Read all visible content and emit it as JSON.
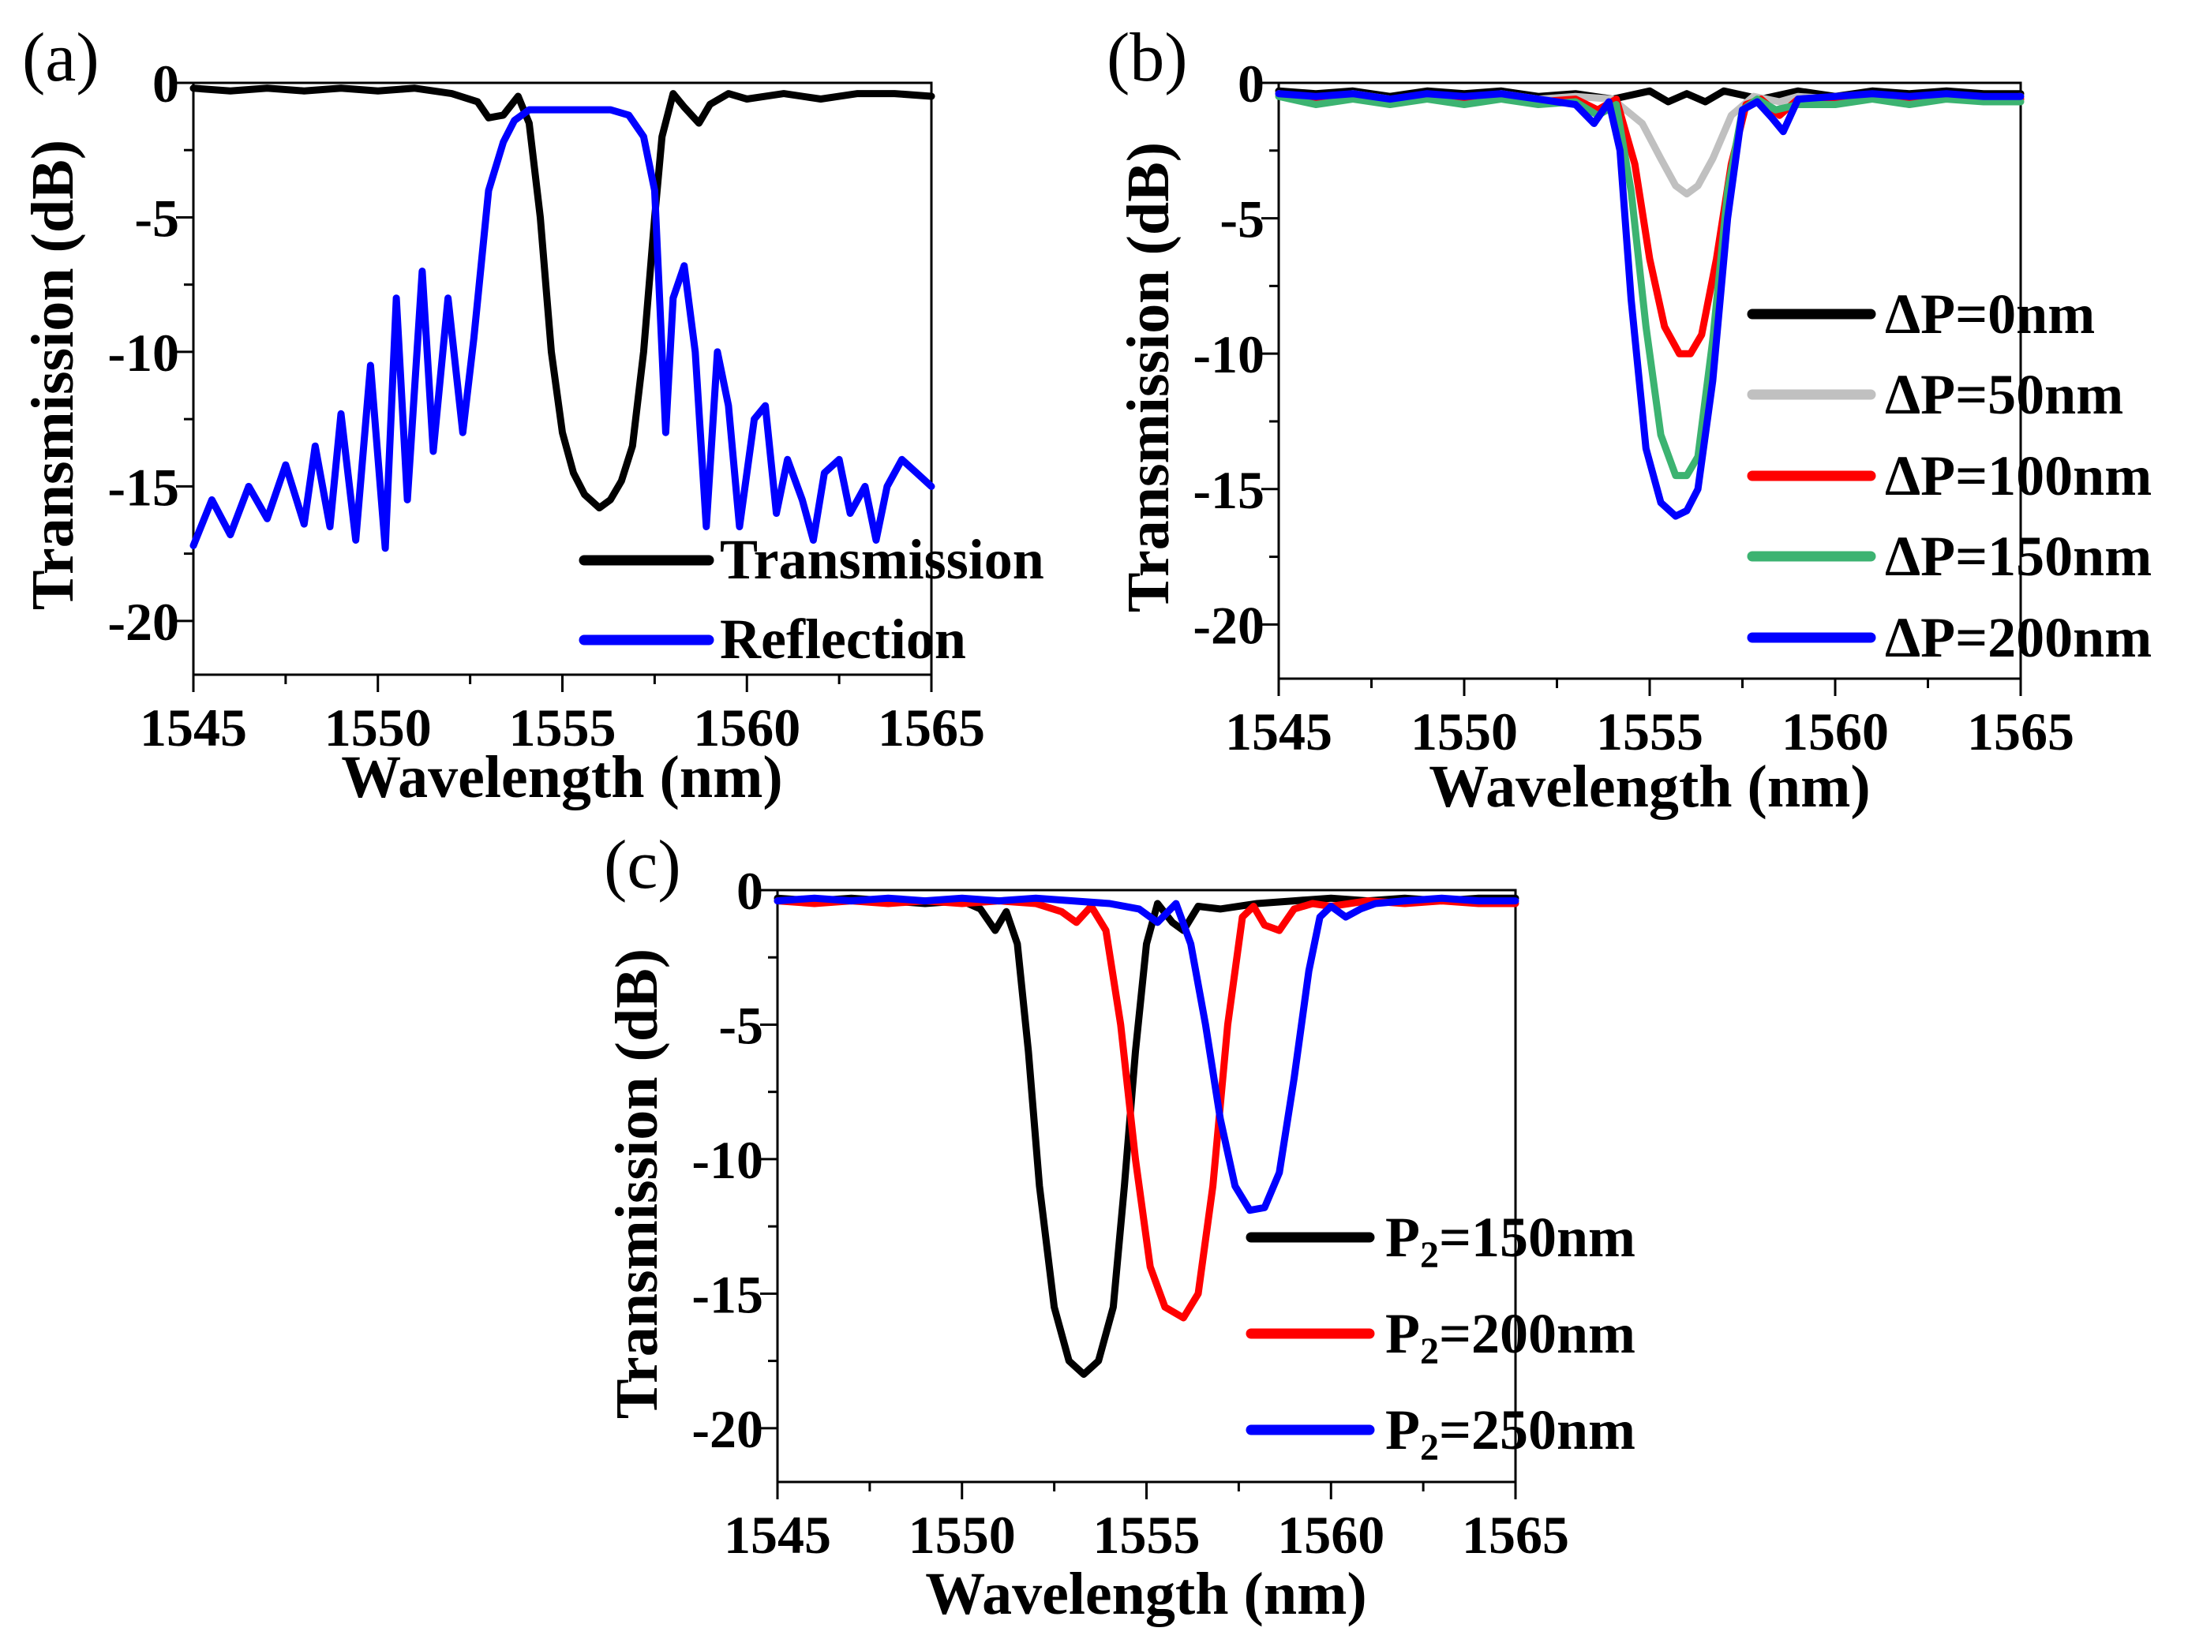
{
  "chart_data": [
    {
      "panel": "(a)",
      "type": "line",
      "xlabel": "Wavelength (nm)",
      "ylabel": "Transmission (dB)",
      "xlim": [
        1545,
        1565
      ],
      "ylim": [
        -22,
        0
      ],
      "xticks": [
        1545,
        1550,
        1555,
        1560,
        1565
      ],
      "xtick_labels": [
        "1545",
        "1550",
        "1555",
        "1560",
        "1565"
      ],
      "yticks": [
        0,
        -5,
        -10,
        -15,
        -20
      ],
      "ytick_labels": [
        "0",
        "-5",
        "-10",
        "-15",
        "-20"
      ],
      "legend_position": "bottom-right",
      "series": [
        {
          "name": "Transmission",
          "color": "#000000",
          "x": [
            1545,
            1546,
            1547,
            1548,
            1549,
            1550,
            1551,
            1552,
            1552.7,
            1553,
            1553.4,
            1553.8,
            1554.1,
            1554.4,
            1554.7,
            1555,
            1555.3,
            1555.6,
            1556,
            1556.3,
            1556.6,
            1556.9,
            1557.2,
            1557.5,
            1557.7,
            1558,
            1558.3,
            1558.7,
            1559,
            1559.5,
            1560,
            1561,
            1562,
            1563,
            1564,
            1565
          ],
          "y": [
            -0.2,
            -0.3,
            -0.2,
            -0.3,
            -0.2,
            -0.3,
            -0.2,
            -0.4,
            -0.7,
            -1.3,
            -1.2,
            -0.5,
            -1.5,
            -5,
            -10,
            -13,
            -14.5,
            -15.3,
            -15.8,
            -15.5,
            -14.8,
            -13.5,
            -10,
            -5,
            -2,
            -0.4,
            -0.9,
            -1.5,
            -0.8,
            -0.4,
            -0.6,
            -0.4,
            -0.6,
            -0.4,
            -0.4,
            -0.5
          ]
        },
        {
          "name": "Reflection",
          "color": "#0000ff",
          "x": [
            1545,
            1545.5,
            1546,
            1546.5,
            1547,
            1547.5,
            1548,
            1548.3,
            1548.7,
            1549,
            1549.4,
            1549.8,
            1550.2,
            1550.5,
            1550.8,
            1551.2,
            1551.5,
            1551.9,
            1552.3,
            1552.6,
            1553,
            1553.4,
            1553.7,
            1553.9,
            1554.1,
            1554.4,
            1554.8,
            1555.3,
            1555.8,
            1556.3,
            1556.8,
            1557.2,
            1557.5,
            1557.8,
            1558,
            1558.3,
            1558.6,
            1558.9,
            1559.2,
            1559.5,
            1559.8,
            1560.2,
            1560.5,
            1560.8,
            1561.1,
            1561.5,
            1561.8,
            1562.1,
            1562.5,
            1562.8,
            1563.2,
            1563.5,
            1563.8,
            1564.2,
            1564.6,
            1565
          ],
          "y": [
            -17.2,
            -15.5,
            -16.8,
            -15.0,
            -16.2,
            -14.2,
            -16.4,
            -13.5,
            -16.5,
            -12.3,
            -17.0,
            -10.5,
            -17.3,
            -8.0,
            -15.5,
            -7.0,
            -13.7,
            -8.0,
            -13.0,
            -9.5,
            -4.0,
            -2.2,
            -1.4,
            -1.2,
            -1.0,
            -1.0,
            -1.0,
            -1.0,
            -1.0,
            -1.0,
            -1.2,
            -2.0,
            -4.0,
            -13.0,
            -8.0,
            -6.8,
            -10.0,
            -16.5,
            -10.0,
            -12.0,
            -16.5,
            -12.5,
            -12.0,
            -16.0,
            -14.0,
            -15.5,
            -17.0,
            -14.5,
            -14.0,
            -16.0,
            -15.0,
            -17.0,
            -15.0,
            -14.0,
            -14.5,
            -15.0
          ]
        }
      ]
    },
    {
      "panel": "(b)",
      "type": "line",
      "xlabel": "Wavelength (nm)",
      "ylabel": "Transmission (dB)",
      "xlim": [
        1545,
        1565
      ],
      "ylim": [
        -22,
        0
      ],
      "xticks": [
        1545,
        1550,
        1555,
        1560,
        1565
      ],
      "xtick_labels": [
        "1545",
        "1550",
        "1555",
        "1560",
        "1565"
      ],
      "yticks": [
        0,
        -5,
        -10,
        -15,
        -20
      ],
      "ytick_labels": [
        "0",
        "-5",
        "-10",
        "-15",
        "-20"
      ],
      "legend_position": "right",
      "series": [
        {
          "name": "ΔP=0nm",
          "color": "#000000",
          "x": [
            1545,
            1546,
            1547,
            1548,
            1549,
            1550,
            1551,
            1552,
            1553,
            1554,
            1555,
            1555.5,
            1556,
            1556.5,
            1557,
            1558,
            1559,
            1560,
            1561,
            1562,
            1563,
            1564,
            1565
          ],
          "y": [
            -0.3,
            -0.4,
            -0.3,
            -0.5,
            -0.3,
            -0.4,
            -0.3,
            -0.5,
            -0.4,
            -0.6,
            -0.3,
            -0.7,
            -0.4,
            -0.7,
            -0.3,
            -0.6,
            -0.3,
            -0.5,
            -0.3,
            -0.4,
            -0.3,
            -0.4,
            -0.4
          ]
        },
        {
          "name": "ΔP=50nm",
          "color": "#c0c0c0",
          "x": [
            1545,
            1546,
            1547,
            1548,
            1549,
            1550,
            1551,
            1552,
            1553,
            1554,
            1554.8,
            1555.3,
            1555.7,
            1556,
            1556.3,
            1556.7,
            1557.2,
            1557.8,
            1558.5,
            1559,
            1560,
            1561,
            1562,
            1563,
            1564,
            1565
          ],
          "y": [
            -0.4,
            -0.6,
            -0.4,
            -0.6,
            -0.5,
            -0.6,
            -0.4,
            -0.6,
            -0.5,
            -0.6,
            -1.5,
            -2.8,
            -3.8,
            -4.1,
            -3.8,
            -2.8,
            -1.2,
            -0.5,
            -0.7,
            -0.5,
            -0.6,
            -0.5,
            -0.6,
            -0.5,
            -0.6,
            -0.5
          ]
        },
        {
          "name": "ΔP=100nm",
          "color": "#ff0000",
          "x": [
            1545,
            1546,
            1547,
            1548,
            1549,
            1550,
            1551,
            1552,
            1553,
            1553.6,
            1554.1,
            1554.6,
            1555,
            1555.4,
            1555.8,
            1556.1,
            1556.4,
            1556.8,
            1557.2,
            1557.6,
            1558,
            1558.5,
            1559,
            1560,
            1561,
            1562,
            1563,
            1564,
            1565
          ],
          "y": [
            -0.4,
            -0.6,
            -0.5,
            -0.7,
            -0.5,
            -0.7,
            -0.5,
            -0.7,
            -0.6,
            -1.0,
            -0.6,
            -3.0,
            -6.5,
            -9.0,
            -10.0,
            -10.0,
            -9.3,
            -6.5,
            -3.0,
            -0.8,
            -0.6,
            -1.2,
            -0.6,
            -0.7,
            -0.5,
            -0.7,
            -0.5,
            -0.6,
            -0.6
          ]
        },
        {
          "name": "ΔP=150nm",
          "color": "#3cb371",
          "x": [
            1545,
            1546,
            1547,
            1548,
            1549,
            1550,
            1551,
            1552,
            1553,
            1553.6,
            1554.1,
            1554.5,
            1554.9,
            1555.3,
            1555.7,
            1556,
            1556.3,
            1556.7,
            1557.1,
            1557.5,
            1557.9,
            1558.4,
            1559,
            1560,
            1561,
            1562,
            1563,
            1564,
            1565
          ],
          "y": [
            -0.5,
            -0.8,
            -0.6,
            -0.8,
            -0.6,
            -0.8,
            -0.6,
            -0.8,
            -0.7,
            -1.2,
            -0.8,
            -4.0,
            -9.0,
            -13.0,
            -14.5,
            -14.5,
            -13.8,
            -9.5,
            -4.0,
            -1.0,
            -0.6,
            -1.0,
            -0.8,
            -0.8,
            -0.6,
            -0.8,
            -0.6,
            -0.7,
            -0.7
          ]
        },
        {
          "name": "ΔP=200nm",
          "color": "#0000ff",
          "x": [
            1545,
            1546,
            1547,
            1548,
            1549,
            1550,
            1551,
            1552,
            1553,
            1553.5,
            1553.9,
            1554.2,
            1554.5,
            1554.9,
            1555.3,
            1555.7,
            1556,
            1556.3,
            1556.7,
            1557.1,
            1557.5,
            1557.9,
            1558.3,
            1558.6,
            1559,
            1560,
            1561,
            1562,
            1563,
            1564,
            1565
          ],
          "y": [
            -0.4,
            -0.5,
            -0.4,
            -0.6,
            -0.4,
            -0.5,
            -0.4,
            -0.6,
            -0.8,
            -1.5,
            -0.7,
            -2.5,
            -8.0,
            -13.5,
            -15.5,
            -16.0,
            -15.8,
            -15.0,
            -11.0,
            -5.0,
            -1.0,
            -0.7,
            -1.3,
            -1.8,
            -0.6,
            -0.5,
            -0.4,
            -0.5,
            -0.4,
            -0.5,
            -0.5
          ]
        }
      ]
    },
    {
      "panel": "(c)",
      "type": "line",
      "xlabel": "Wavelength (nm)",
      "ylabel": "Transmission (dB)",
      "xlim": [
        1545,
        1565
      ],
      "ylim": [
        -22,
        0
      ],
      "xticks": [
        1545,
        1550,
        1555,
        1560,
        1565
      ],
      "xtick_labels": [
        "1545",
        "1550",
        "1555",
        "1560",
        "1565"
      ],
      "yticks": [
        0,
        -5,
        -10,
        -15,
        -20
      ],
      "ytick_labels": [
        "0",
        "-5",
        "-10",
        "-15",
        "-20"
      ],
      "legend_position": "bottom-right",
      "series": [
        {
          "name": "P2=150nm",
          "label_base": "P",
          "label_sub": "2",
          "label_rest": "=150nm",
          "color": "#000000",
          "x": [
            1545,
            1546,
            1547,
            1548,
            1549,
            1550,
            1550.5,
            1550.9,
            1551.2,
            1551.5,
            1551.8,
            1552.1,
            1552.5,
            1552.9,
            1553.3,
            1553.7,
            1554.1,
            1554.4,
            1554.7,
            1555,
            1555.3,
            1555.7,
            1556,
            1556.4,
            1557,
            1558,
            1559,
            1560,
            1561,
            1562,
            1563,
            1564,
            1565
          ],
          "y": [
            -0.3,
            -0.4,
            -0.3,
            -0.4,
            -0.5,
            -0.4,
            -0.7,
            -1.5,
            -0.8,
            -2.0,
            -6.0,
            -11.0,
            -15.5,
            -17.5,
            -18.0,
            -17.5,
            -15.5,
            -11.0,
            -6.0,
            -2.0,
            -0.5,
            -1.2,
            -1.5,
            -0.6,
            -0.7,
            -0.5,
            -0.4,
            -0.3,
            -0.4,
            -0.3,
            -0.4,
            -0.3,
            -0.3
          ]
        },
        {
          "name": "P2=200nm",
          "label_base": "P",
          "label_sub": "2",
          "label_rest": "=200nm",
          "color": "#ff0000",
          "x": [
            1545,
            1546,
            1547,
            1548,
            1549,
            1550,
            1551,
            1552,
            1552.7,
            1553.1,
            1553.5,
            1553.9,
            1554.3,
            1554.7,
            1555.1,
            1555.5,
            1556,
            1556.4,
            1556.8,
            1557.2,
            1557.6,
            1557.9,
            1558.2,
            1558.6,
            1559,
            1559.5,
            1560,
            1561,
            1562,
            1563,
            1564,
            1565
          ],
          "y": [
            -0.4,
            -0.5,
            -0.4,
            -0.5,
            -0.4,
            -0.5,
            -0.4,
            -0.5,
            -0.8,
            -1.2,
            -0.6,
            -1.5,
            -5.0,
            -10.0,
            -14.0,
            -15.5,
            -15.9,
            -15.0,
            -11.0,
            -5.0,
            -1.0,
            -0.6,
            -1.3,
            -1.5,
            -0.7,
            -0.5,
            -0.6,
            -0.4,
            -0.5,
            -0.4,
            -0.5,
            -0.5
          ]
        },
        {
          "name": "P2=250nm",
          "label_base": "P",
          "label_sub": "2",
          "label_rest": "=250nm",
          "color": "#0000ff",
          "x": [
            1545,
            1546,
            1547,
            1548,
            1549,
            1550,
            1551,
            1552,
            1553,
            1554,
            1554.8,
            1555.3,
            1555.8,
            1556.2,
            1556.6,
            1557,
            1557.4,
            1557.8,
            1558.2,
            1558.6,
            1559,
            1559.4,
            1559.7,
            1560,
            1560.4,
            1560.8,
            1561.2,
            1562,
            1563,
            1564,
            1565
          ],
          "y": [
            -0.4,
            -0.3,
            -0.4,
            -0.3,
            -0.4,
            -0.3,
            -0.4,
            -0.3,
            -0.4,
            -0.5,
            -0.7,
            -1.2,
            -0.5,
            -2.0,
            -5.0,
            -8.5,
            -11.0,
            -11.9,
            -11.8,
            -10.5,
            -7.0,
            -3.0,
            -1.0,
            -0.6,
            -1.0,
            -0.7,
            -0.5,
            -0.4,
            -0.3,
            -0.4,
            -0.4
          ]
        }
      ]
    }
  ]
}
